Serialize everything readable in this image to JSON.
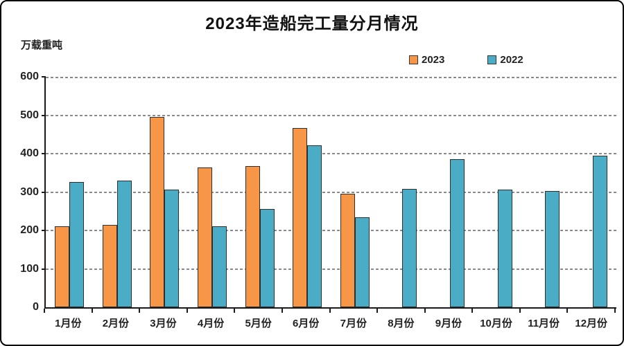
{
  "chart_data": {
    "type": "bar",
    "title": "2023年造船完工量分月情况",
    "unit_label": "万载重吨",
    "categories": [
      "1月份",
      "2月份",
      "3月份",
      "4月份",
      "5月份",
      "6月份",
      "7月份",
      "8月份",
      "9月份",
      "10月份",
      "11月份",
      "12月份"
    ],
    "series": [
      {
        "name": "2023",
        "color": "#F79646",
        "values": [
          210,
          214,
          495,
          364,
          367,
          467,
          295,
          null,
          null,
          null,
          null,
          null
        ]
      },
      {
        "name": "2022",
        "color": "#4BACC6",
        "values": [
          326,
          329,
          307,
          210,
          256,
          421,
          234,
          309,
          386,
          307,
          302,
          395
        ]
      }
    ],
    "ylim": [
      0,
      600
    ],
    "yticks": [
      0,
      100,
      200,
      300,
      400,
      500,
      600
    ],
    "grid": "horizontal-dashed",
    "legend_position": "top-right",
    "bar_border_color": "#2e2e2e"
  },
  "frame": {
    "background": "#ffffff",
    "border_color": "#000000"
  }
}
